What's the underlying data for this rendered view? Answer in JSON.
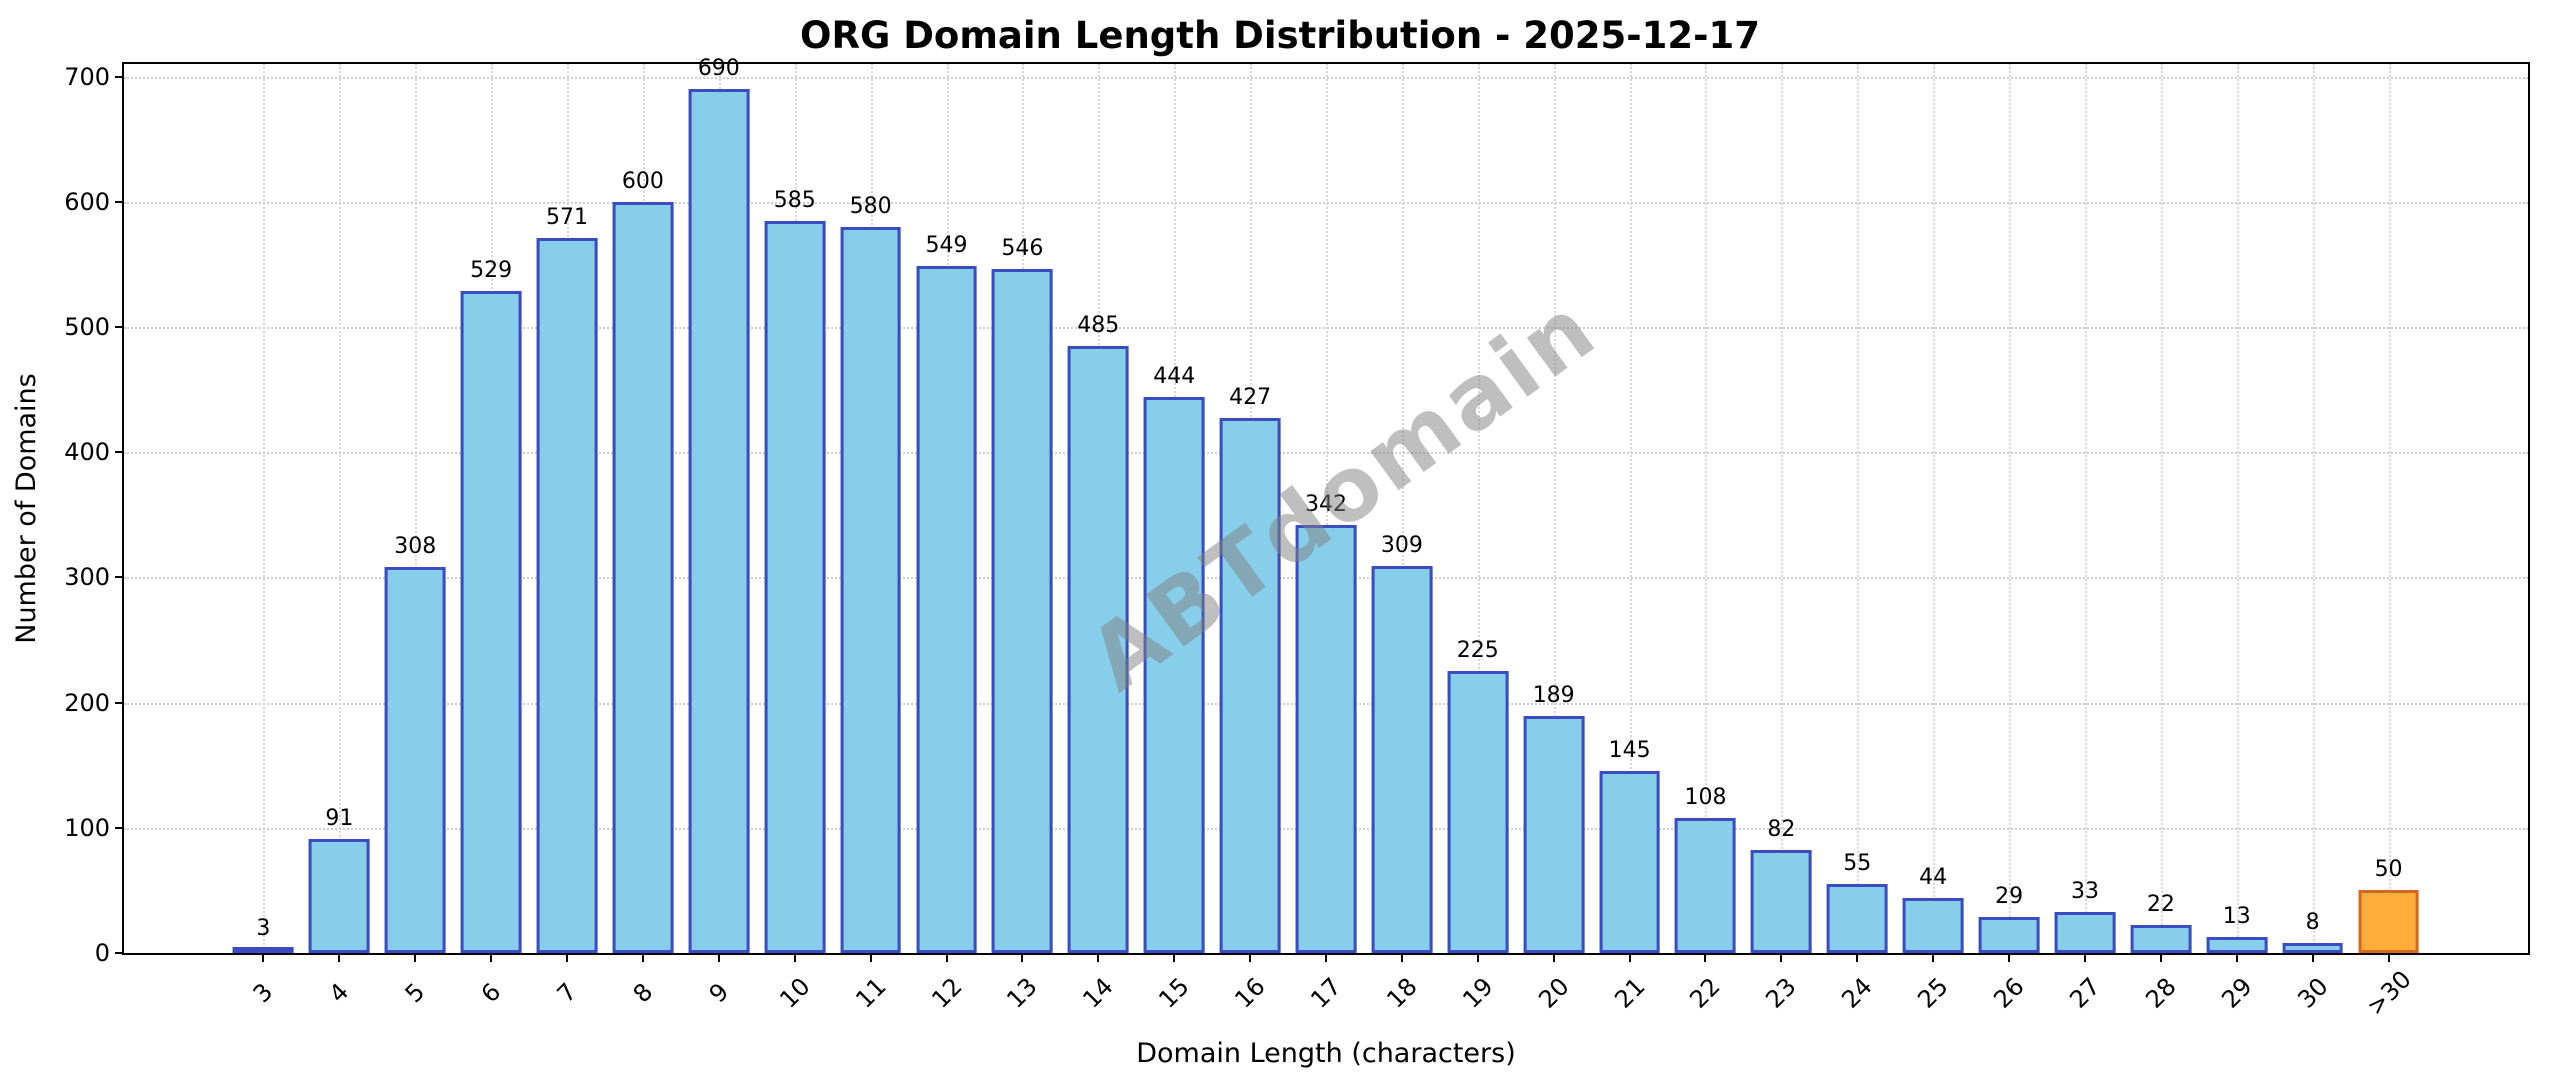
{
  "chart_data": {
    "type": "bar",
    "title": "ORG Domain Length Distribution - 2025-12-17",
    "xlabel": "Domain Length (characters)",
    "ylabel": "Number of Domains",
    "categories": [
      "3",
      "4",
      "5",
      "6",
      "7",
      "8",
      "9",
      "10",
      "11",
      "12",
      "13",
      "14",
      "15",
      "16",
      "17",
      "18",
      "19",
      "20",
      "21",
      "22",
      "23",
      "24",
      "25",
      "26",
      "27",
      "28",
      "29",
      "30",
      ">30"
    ],
    "values": [
      3,
      91,
      308,
      529,
      571,
      600,
      690,
      585,
      580,
      549,
      546,
      485,
      444,
      427,
      342,
      309,
      225,
      189,
      145,
      108,
      82,
      55,
      44,
      29,
      33,
      22,
      13,
      8,
      50
    ],
    "yticks": [
      0,
      100,
      200,
      300,
      400,
      500,
      600,
      700
    ],
    "ylim": [
      0,
      710
    ],
    "grid": true,
    "legend_position": "none",
    "bar_color": "#87CEEB",
    "bar_edge_color": "#3B4CC0",
    "highlight_index": 28,
    "highlight_color": "#FFAE3C",
    "highlight_edge_color": "#D2691E",
    "watermark": "ABTdomain"
  }
}
